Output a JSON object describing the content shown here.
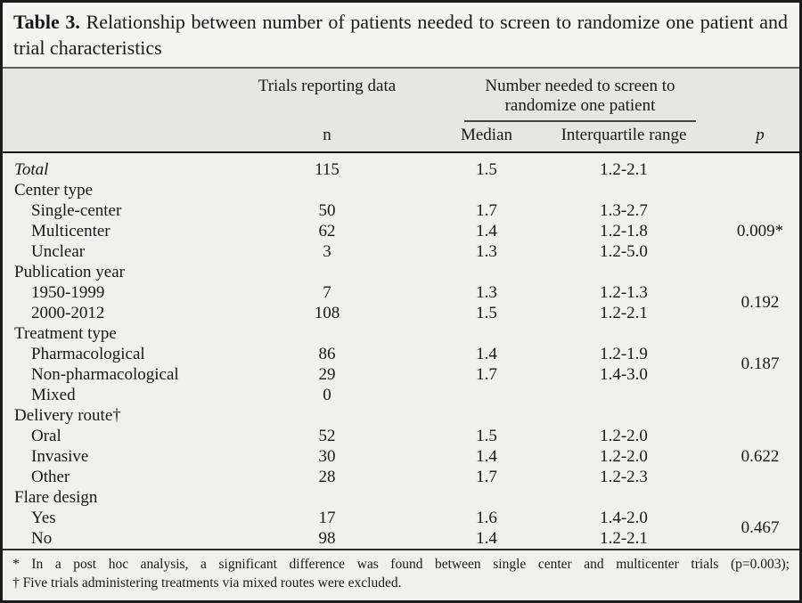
{
  "colors": {
    "page_background": "#f0f0ef",
    "title_background": "#f4f4f3",
    "header_band": "#e6e6e4",
    "outer_border": "#1b1b1b",
    "text": "#181818"
  },
  "title": {
    "label": "Table 3.",
    "text": "Relationship between number of patients needed to screen to randomize one patient and trial characteristics"
  },
  "header": {
    "trials_reporting_data": "Trials reporting data",
    "number_needed_spanner": "Number needed to screen to randomize one patient",
    "n": "n",
    "median": "Median",
    "interquartile_range": "Interquartile range",
    "p": "p"
  },
  "body": {
    "total": {
      "label": "Total",
      "n": "115",
      "median": "1.5",
      "iqr": "1.2-2.1"
    },
    "groups": [
      {
        "label": "Center type",
        "p": "0.009*",
        "items": [
          {
            "label": "Single-center",
            "n": "50",
            "median": "1.7",
            "iqr": "1.3-2.7"
          },
          {
            "label": "Multicenter",
            "n": "62",
            "median": "1.4",
            "iqr": "1.2-1.8"
          },
          {
            "label": "Unclear",
            "n": "3",
            "median": "1.3",
            "iqr": "1.2-5.0"
          }
        ]
      },
      {
        "label": "Publication year",
        "p": "0.192",
        "items": [
          {
            "label": "1950-1999",
            "n": "7",
            "median": "1.3",
            "iqr": "1.2-1.3"
          },
          {
            "label": "2000-2012",
            "n": "108",
            "median": "1.5",
            "iqr": "1.2-2.1"
          }
        ]
      },
      {
        "label": "Treatment type",
        "p": "0.187",
        "items": [
          {
            "label": "Pharmacological",
            "n": "86",
            "median": "1.4",
            "iqr": "1.2-1.9"
          },
          {
            "label": "Non-pharmacological",
            "n": "29",
            "median": "1.7",
            "iqr": "1.4-3.0"
          },
          {
            "label": "Mixed",
            "n": "0"
          }
        ]
      },
      {
        "label": "Delivery route†",
        "p": "0.622",
        "items": [
          {
            "label": "Oral",
            "n": "52",
            "median": "1.5",
            "iqr": "1.2-2.0"
          },
          {
            "label": "Invasive",
            "n": "30",
            "median": "1.4",
            "iqr": "1.2-2.0"
          },
          {
            "label": "Other",
            "n": "28",
            "median": "1.7",
            "iqr": "1.2-2.3"
          }
        ]
      },
      {
        "label": "Flare design",
        "p": "0.467",
        "items": [
          {
            "label": "Yes",
            "n": "17",
            "median": "1.6",
            "iqr": "1.4-2.0"
          },
          {
            "label": "No",
            "n": "98",
            "median": "1.4",
            "iqr": "1.2-2.1"
          }
        ]
      }
    ]
  },
  "footnotes": [
    "* In a post hoc analysis, a significant difference was found between single center and multicenter trials (p=0.003);",
    "† Five trials administering treatments via mixed routes were excluded."
  ]
}
